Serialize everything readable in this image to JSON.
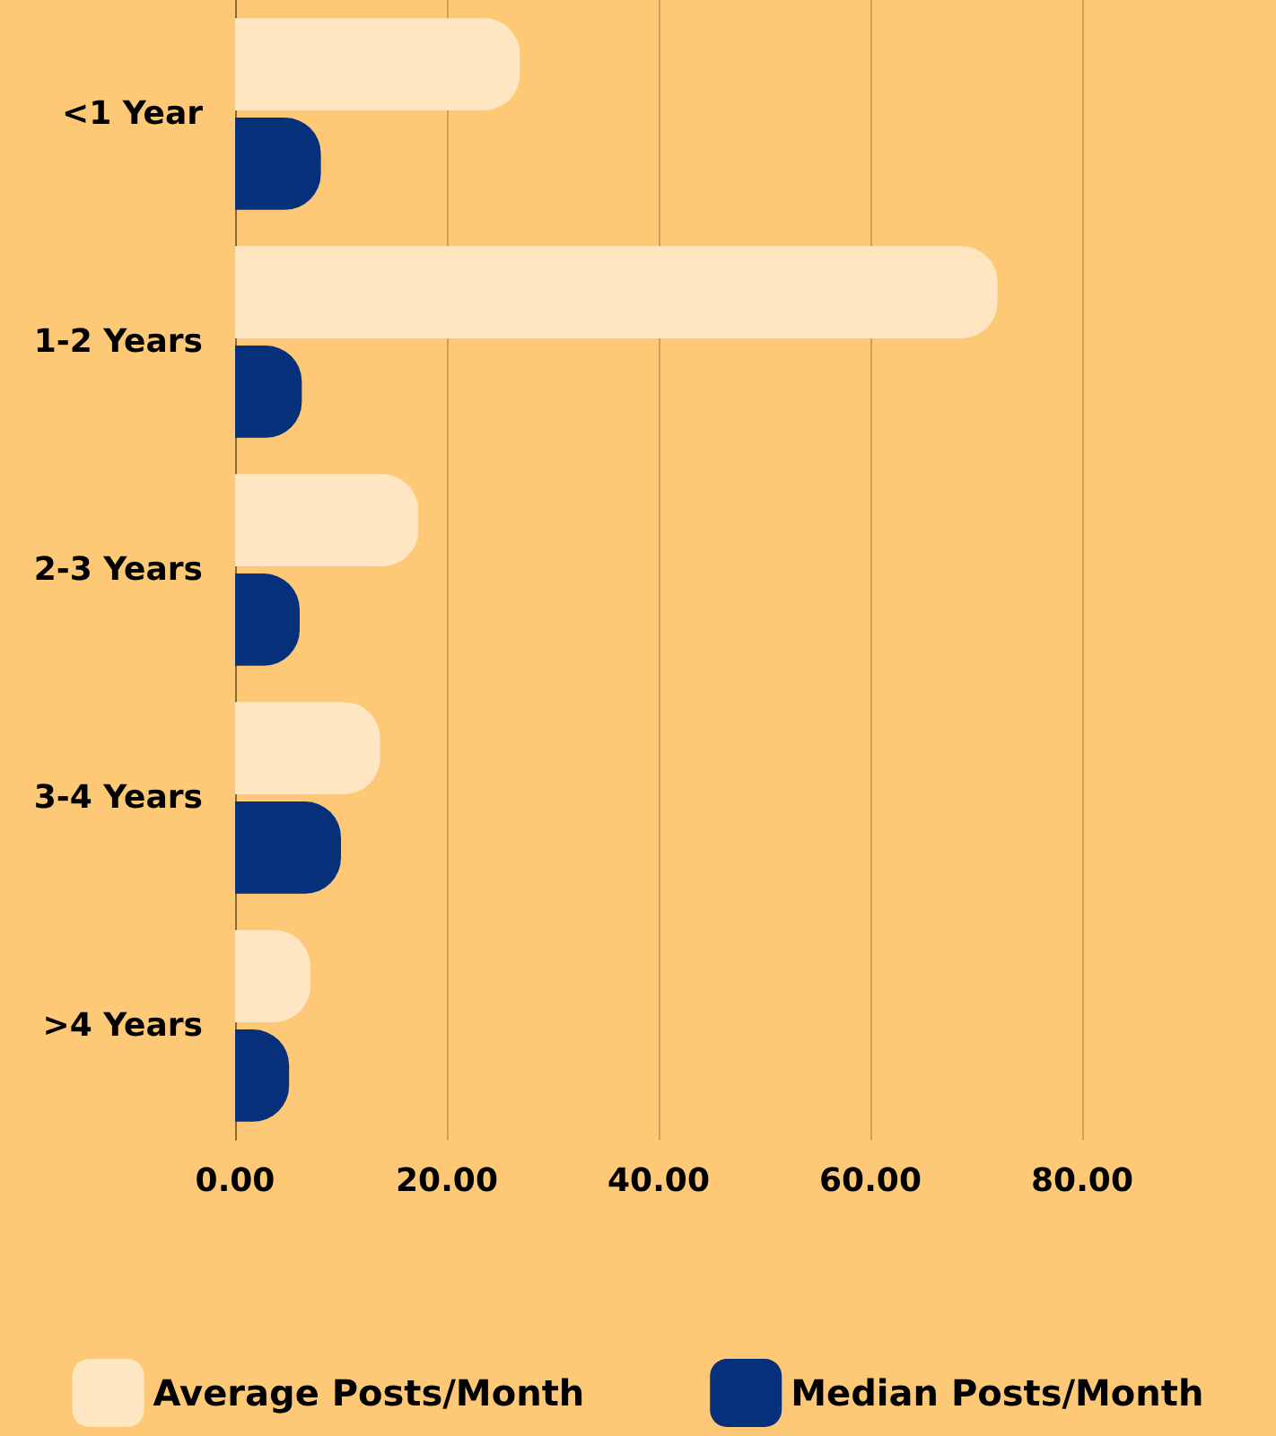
{
  "chart_data": {
    "type": "bar",
    "orientation": "horizontal",
    "categories": [
      "<1 Year",
      "1-2 Years",
      "2-3 Years",
      "3-4 Years",
      ">4 Years"
    ],
    "series": [
      {
        "name": "Average Posts/Month",
        "color": "#fde6c1",
        "values": [
          26.9,
          72,
          17.3,
          13.7,
          7.1
        ]
      },
      {
        "name": "Median Posts/Month",
        "color": "#06307a",
        "values": [
          8.1,
          6.3,
          6.1,
          10,
          5.1
        ]
      }
    ],
    "xlim": [
      0,
      80
    ],
    "xticks": [
      {
        "value": 0,
        "label": "0.00"
      },
      {
        "value": 20,
        "label": "20.00"
      },
      {
        "value": 40,
        "label": "40.00"
      },
      {
        "value": 60,
        "label": "60.00"
      },
      {
        "value": 80,
        "label": "80.00"
      }
    ],
    "grid": "x",
    "legend": "bottom"
  }
}
